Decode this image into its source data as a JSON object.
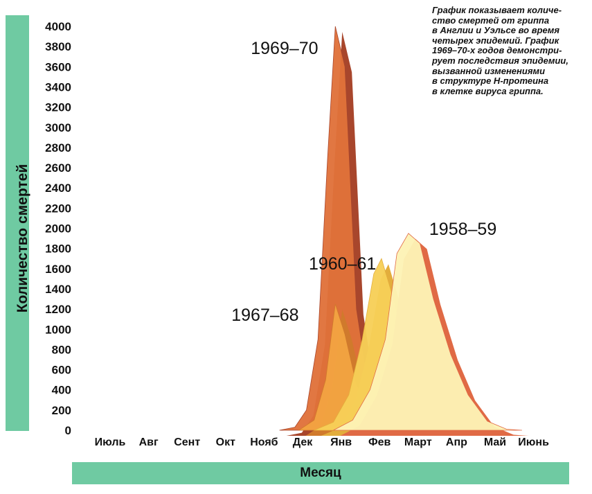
{
  "caption": "График показывает количе-\nство смертей от гриппа\nв Англии и Уэльсе во время\nчетырех эпидемий. График\n1969–70-х годов демонстри-\nрует последствия эпидемии,\nвызванной изменениями\nв структуре Н-протеина\nв клетке вируса гриппа.",
  "chart_data": {
    "type": "area",
    "categories": [
      "Июль",
      "Авг",
      "Сент",
      "Окт",
      "Нояб",
      "Дек",
      "Янв",
      "Фев",
      "Март",
      "Апр",
      "Май",
      "Июнь"
    ],
    "xlabel": "Месяц",
    "ylabel": "Количество смертей",
    "ylim": [
      0,
      4000
    ],
    "yticks": [
      0,
      200,
      400,
      600,
      800,
      1000,
      1200,
      1400,
      1600,
      1800,
      2000,
      2200,
      2400,
      2600,
      2800,
      3000,
      3200,
      3400,
      3600,
      3800,
      4000
    ],
    "grid": false,
    "legend": "none",
    "series": [
      {
        "name": "1969–70",
        "color": "#e0713a",
        "side_color": "#a8462c",
        "points": [
          [
            4.4,
            0
          ],
          [
            4.8,
            30
          ],
          [
            5.1,
            200
          ],
          [
            5.4,
            900
          ],
          [
            5.65,
            2700
          ],
          [
            5.85,
            4000
          ],
          [
            6.1,
            3600
          ],
          [
            6.4,
            1200
          ],
          [
            6.7,
            450
          ],
          [
            7.1,
            300
          ],
          [
            7.6,
            200
          ],
          [
            8.3,
            100
          ],
          [
            9.0,
            40
          ],
          [
            9.5,
            0
          ]
        ]
      },
      {
        "name": "1967–68",
        "color": "#f2a342",
        "side_color": "#d07a2c",
        "points": [
          [
            4.9,
            0
          ],
          [
            5.3,
            100
          ],
          [
            5.6,
            500
          ],
          [
            5.85,
            1250
          ],
          [
            6.1,
            950
          ],
          [
            6.4,
            450
          ],
          [
            6.8,
            200
          ],
          [
            7.3,
            80
          ],
          [
            7.8,
            20
          ],
          [
            8.2,
            0
          ]
        ]
      },
      {
        "name": "1960–61",
        "color": "#f7cf57",
        "side_color": "#e3ad3c",
        "points": [
          [
            5.3,
            0
          ],
          [
            5.8,
            80
          ],
          [
            6.2,
            350
          ],
          [
            6.55,
            900
          ],
          [
            6.85,
            1550
          ],
          [
            7.05,
            1700
          ],
          [
            7.4,
            1250
          ],
          [
            7.8,
            600
          ],
          [
            8.3,
            250
          ],
          [
            8.9,
            80
          ],
          [
            9.4,
            20
          ],
          [
            9.8,
            0
          ]
        ]
      },
      {
        "name": "1958–59",
        "color": "#fdf2b5",
        "side_color": "#e06a45",
        "points": [
          [
            5.8,
            0
          ],
          [
            6.3,
            100
          ],
          [
            6.75,
            400
          ],
          [
            7.15,
            900
          ],
          [
            7.45,
            1750
          ],
          [
            7.75,
            1950
          ],
          [
            8.05,
            1850
          ],
          [
            8.4,
            1300
          ],
          [
            8.85,
            750
          ],
          [
            9.3,
            350
          ],
          [
            9.8,
            90
          ],
          [
            10.3,
            10
          ],
          [
            10.7,
            0
          ]
        ]
      }
    ]
  }
}
